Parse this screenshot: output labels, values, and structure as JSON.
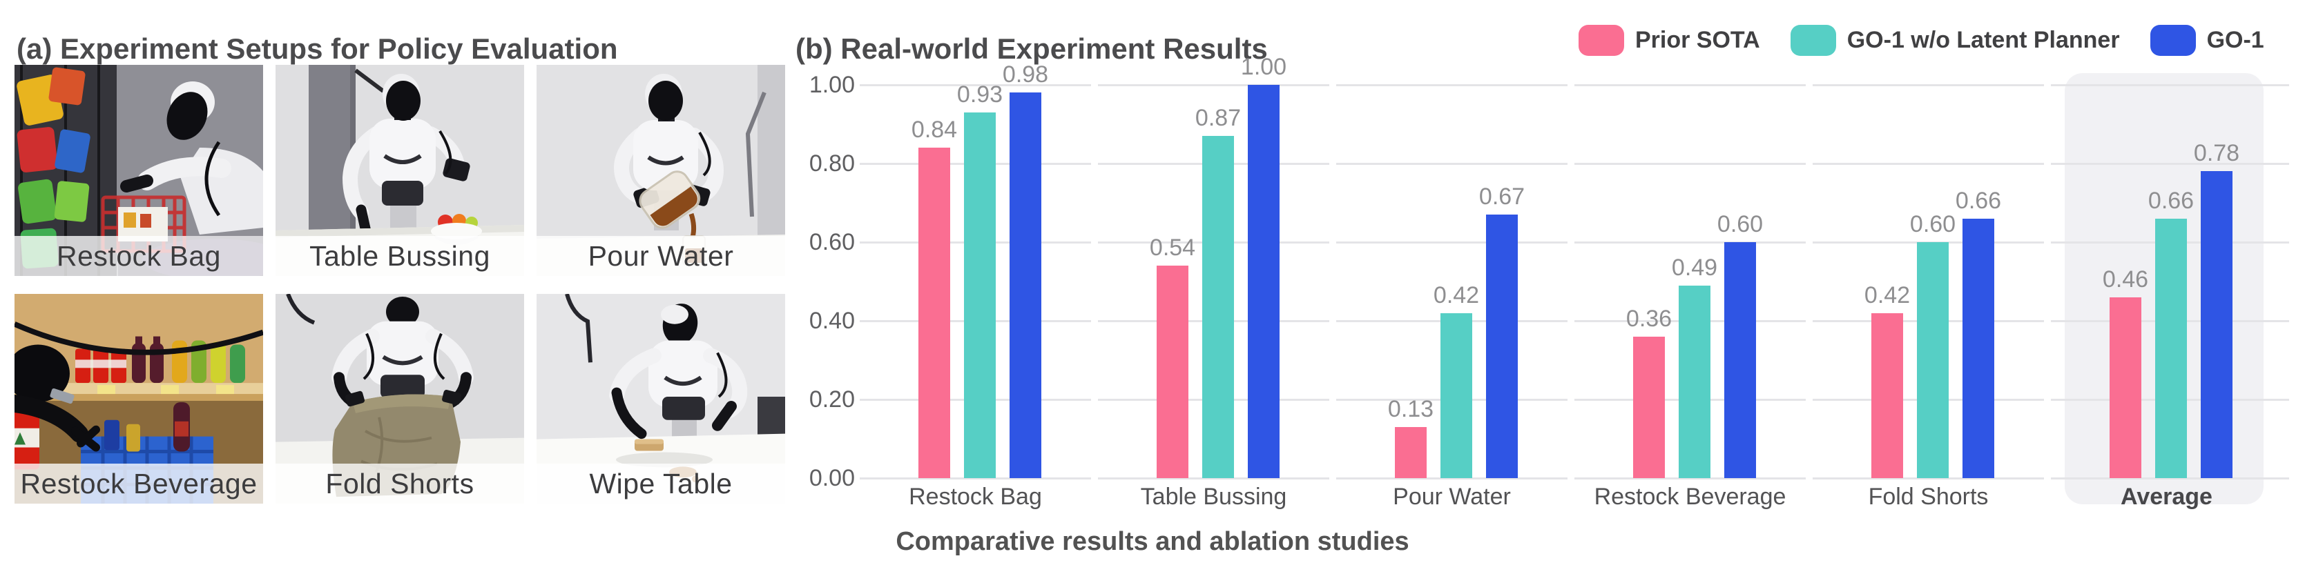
{
  "panel_a": {
    "title": "(a) Experiment Setups for Policy Evaluation",
    "setups": [
      {
        "label": "Restock Bag"
      },
      {
        "label": "Table Bussing"
      },
      {
        "label": "Pour Water"
      },
      {
        "label": "Restock Beverage"
      },
      {
        "label": "Fold Shorts"
      },
      {
        "label": "Wipe Table"
      }
    ]
  },
  "panel_b": {
    "title": "(b) Real-world Experiment Results",
    "caption": "Comparative results and ablation studies",
    "legend": [
      {
        "label": "Prior SOTA",
        "color": "#FA6E92"
      },
      {
        "label": "GO-1 w/o Latent Planner",
        "color": "#56CFC5"
      },
      {
        "label": "GO-1",
        "color": "#2F55E4"
      }
    ]
  },
  "chart_data": {
    "type": "bar",
    "title": "(b) Real-world Experiment Results",
    "categories": [
      "Restock Bag",
      "Table Bussing",
      "Pour Water",
      "Restock Beverage",
      "Fold Shorts",
      "Average"
    ],
    "series": [
      {
        "name": "Prior SOTA",
        "color": "#FA6E92",
        "values": [
          0.84,
          0.54,
          0.13,
          0.36,
          0.42,
          0.46
        ]
      },
      {
        "name": "GO-1 w/o Latent Planner",
        "color": "#56CFC5",
        "values": [
          0.93,
          0.87,
          0.42,
          0.49,
          0.6,
          0.66
        ]
      },
      {
        "name": "GO-1",
        "color": "#2F55E4",
        "values": [
          0.98,
          1.0,
          0.67,
          0.6,
          0.66,
          0.78
        ]
      }
    ],
    "ylim": [
      0,
      1.0
    ],
    "yticks": [
      0.0,
      0.2,
      0.4,
      0.6,
      0.8,
      1.0
    ],
    "ytick_labels": [
      "0.00",
      "0.20",
      "0.40",
      "0.60",
      "0.80",
      "1.00"
    ],
    "value_labels": true,
    "value_label_format": "0.00",
    "highlight_category": "Average",
    "highlight_bg_color": "#f1f1f4",
    "gridline_color": "#e4e4e7",
    "grid": "horizontal, per-category segments",
    "legend_position": "top-right",
    "xlabel": "",
    "ylabel": ""
  }
}
